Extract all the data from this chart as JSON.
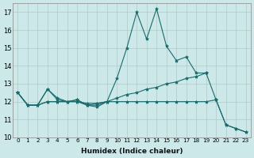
{
  "title": "",
  "xlabel": "Humidex (Indice chaleur)",
  "background_color": "#cce8e8",
  "grid_color": "#b0c8c8",
  "line_color": "#1a6b6b",
  "xlim": [
    -0.5,
    23.5
  ],
  "ylim": [
    10,
    17.5
  ],
  "xticks": [
    0,
    1,
    2,
    3,
    4,
    5,
    6,
    7,
    8,
    9,
    10,
    11,
    12,
    13,
    14,
    15,
    16,
    17,
    18,
    19,
    20,
    21,
    22,
    23
  ],
  "yticks": [
    10,
    11,
    12,
    13,
    14,
    15,
    16,
    17
  ],
  "lines": [
    {
      "x": [
        0,
        1,
        2,
        3,
        4,
        5,
        6,
        7,
        8,
        9,
        10,
        11,
        12,
        13,
        14,
        15,
        16,
        17,
        18,
        19
      ],
      "y": [
        12.5,
        11.8,
        11.8,
        12.7,
        12.1,
        12.0,
        12.1,
        11.8,
        11.7,
        12.0,
        13.3,
        15.0,
        17.0,
        15.5,
        17.2,
        15.1,
        14.3,
        14.5,
        13.6,
        13.6
      ]
    },
    {
      "x": [
        0,
        1,
        2,
        3,
        4,
        5,
        6,
        7,
        8,
        9
      ],
      "y": [
        12.5,
        11.8,
        11.8,
        12.7,
        12.2,
        12.0,
        12.1,
        11.8,
        11.9,
        12.0
      ]
    },
    {
      "x": [
        0,
        1,
        2,
        3,
        4,
        5,
        6,
        7,
        8,
        9,
        10,
        11,
        12,
        13,
        14,
        15,
        16,
        17,
        18,
        19,
        20,
        21,
        22,
        23
      ],
      "y": [
        12.5,
        11.8,
        11.8,
        12.0,
        12.0,
        12.0,
        12.0,
        11.8,
        11.8,
        12.0,
        12.2,
        12.4,
        12.5,
        12.7,
        12.8,
        13.0,
        13.1,
        13.3,
        13.4,
        13.6,
        12.1,
        10.7,
        10.5,
        10.3
      ]
    },
    {
      "x": [
        0,
        1,
        2,
        3,
        4,
        5,
        6,
        7,
        8,
        9,
        10,
        11,
        12,
        13,
        14,
        15,
        16,
        17,
        18,
        19,
        20,
        21,
        22,
        23
      ],
      "y": [
        12.5,
        11.8,
        11.8,
        12.0,
        12.0,
        12.0,
        12.0,
        11.9,
        11.9,
        12.0,
        12.0,
        12.0,
        12.0,
        12.0,
        12.0,
        12.0,
        12.0,
        12.0,
        12.0,
        12.0,
        12.1,
        10.7,
        10.5,
        10.3
      ]
    }
  ]
}
